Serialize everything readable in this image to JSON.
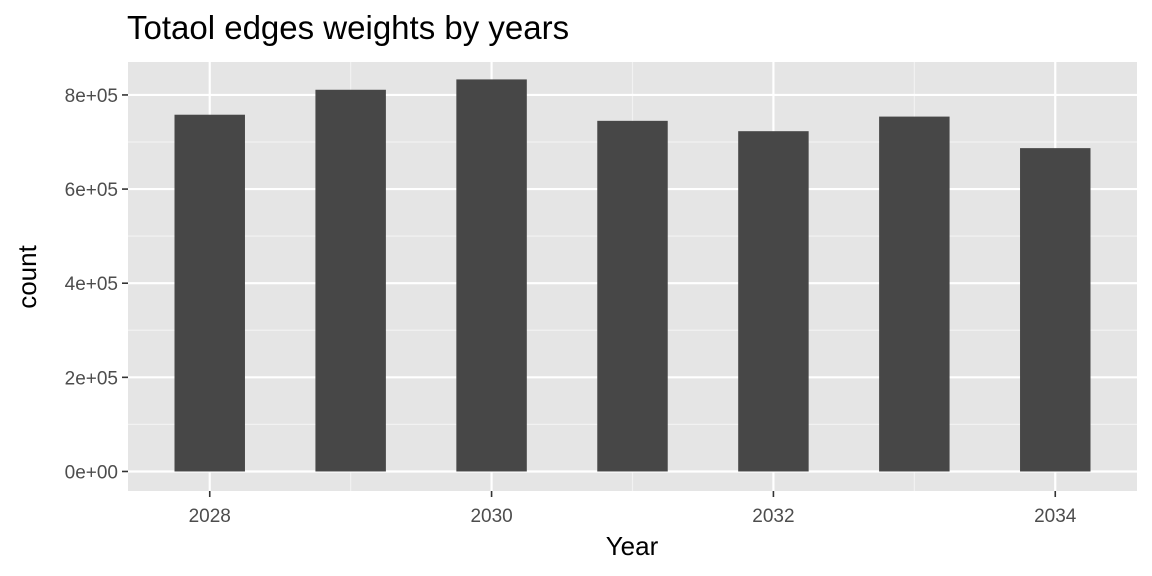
{
  "chart_data": {
    "type": "bar",
    "title": "Totaol edges weights by years",
    "xlabel": "Year",
    "ylabel": "count",
    "x": [
      2028,
      2029,
      2030,
      2031,
      2032,
      2033,
      2034
    ],
    "values": [
      758000,
      811000,
      833000,
      745000,
      723000,
      754000,
      687000
    ],
    "xlim": [
      2027.42,
      2034.58
    ],
    "ylim": [
      -41500,
      870000
    ],
    "x_ticks": [
      2028,
      2030,
      2032,
      2034
    ],
    "x_tick_labels": [
      "2028",
      "2030",
      "2032",
      "2034"
    ],
    "y_ticks": [
      0,
      200000,
      400000,
      600000,
      800000
    ],
    "y_tick_labels": [
      "0e+00",
      "2e+05",
      "4e+05",
      "6e+05",
      "8e+05"
    ],
    "grid": true,
    "colors": {
      "panel_background": "#e5e5e5",
      "grid_major": "#ffffff",
      "grid_minor": "#f2f2f2",
      "bar_fill": "#474747",
      "tick_text": "#4d4d4d",
      "tick_mark": "#333333"
    }
  }
}
